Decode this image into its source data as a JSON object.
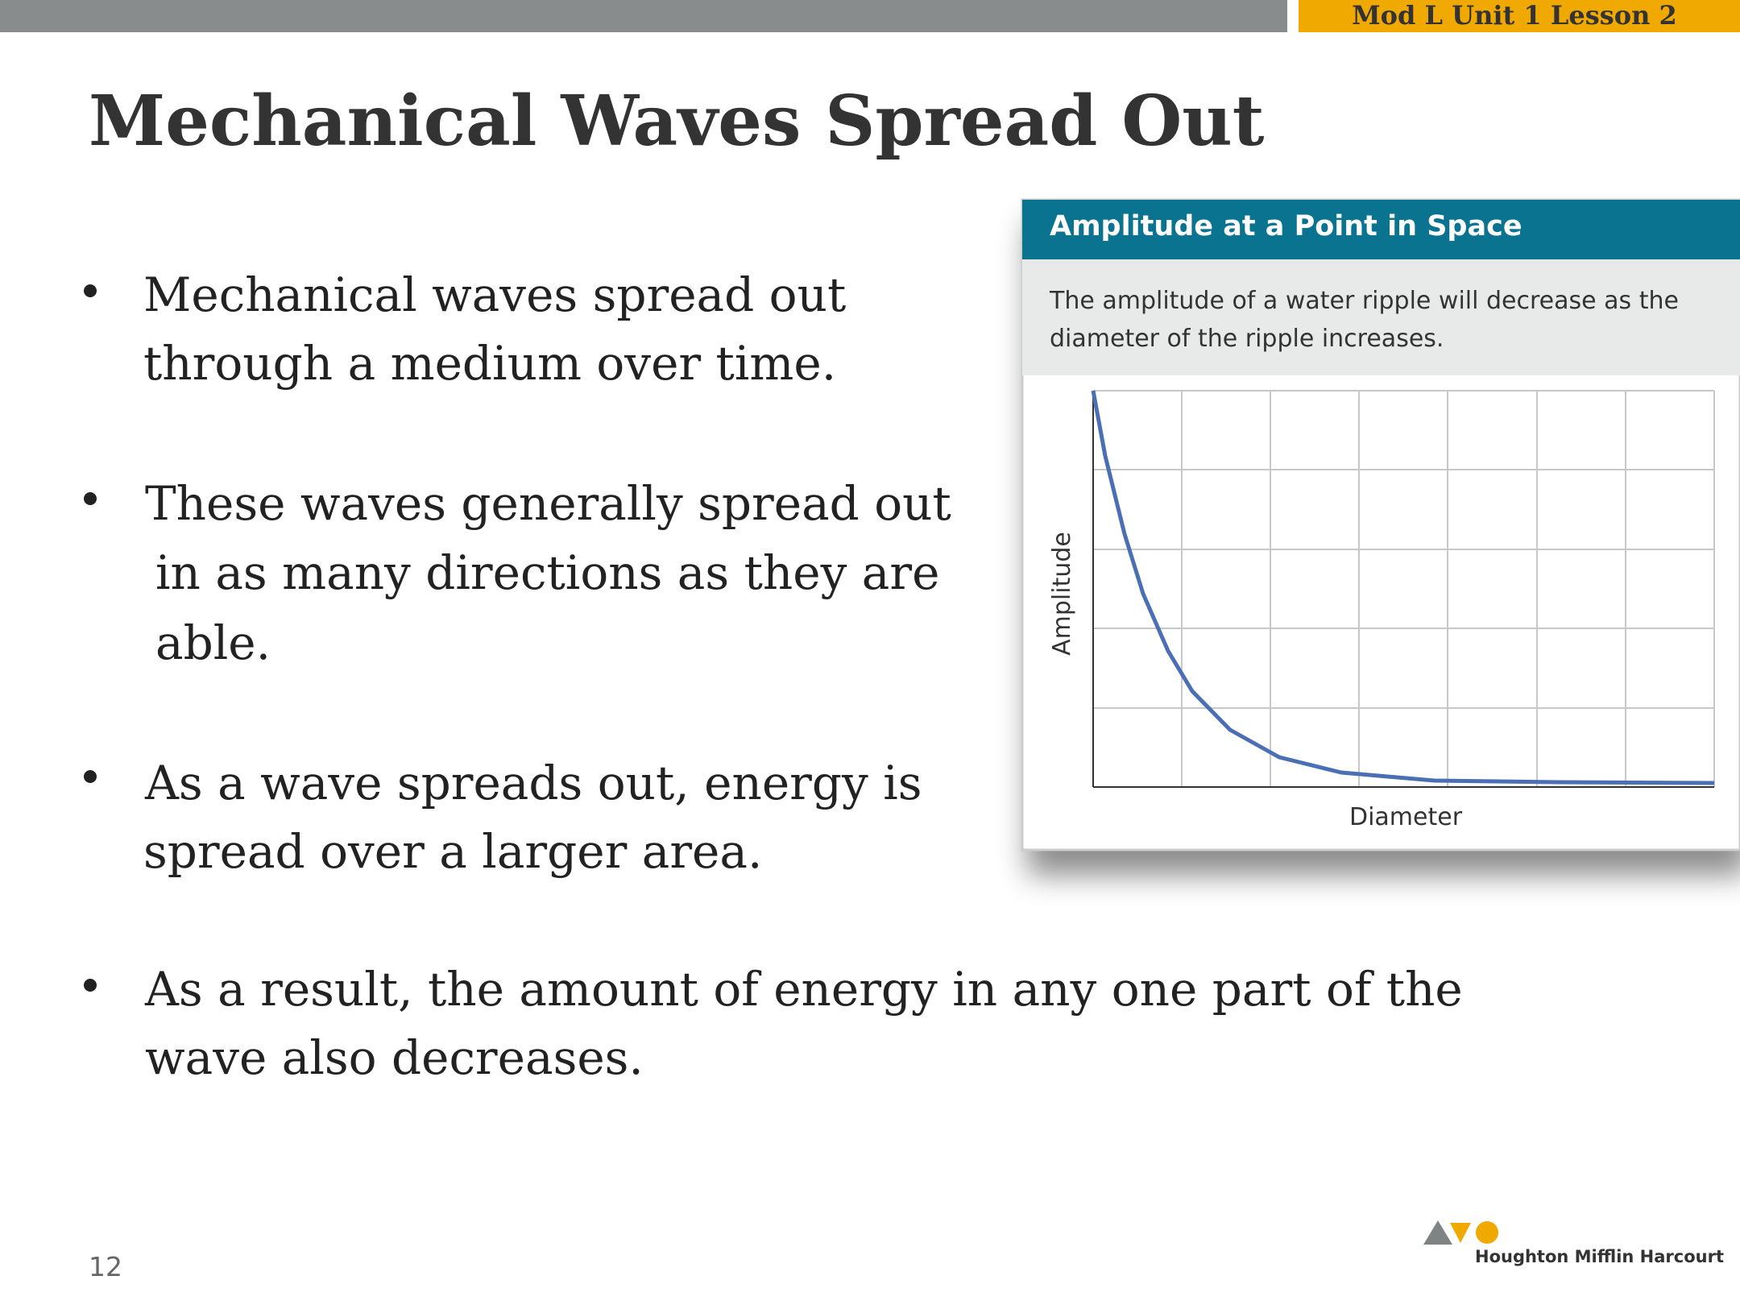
{
  "header": {
    "tag": "Mod L Unit 1 Lesson 2"
  },
  "title": "Mechanical Waves Spread Out",
  "bullets": [
    {
      "lines": [
        "Mechanical waves spread out",
        "through a medium over time."
      ]
    },
    {
      "lines": [
        "These waves generally spread out",
        "in as many directions as they are",
        "able."
      ]
    },
    {
      "lines": [
        "As a wave spreads out, energy is",
        "spread over a larger area."
      ]
    },
    {
      "lines": [
        "As a result, the amount of energy in any one part of the",
        "wave also decreases."
      ]
    }
  ],
  "figure": {
    "title": "Amplitude at a Point in Space",
    "caption": [
      "The amplitude of a water ripple will decrease as the",
      "diameter of the ripple increases."
    ],
    "y_label": "Amplitude",
    "x_label": "Diameter"
  },
  "footer": {
    "page": "12",
    "logo": "Houghton Mifflin Harcourt"
  }
}
